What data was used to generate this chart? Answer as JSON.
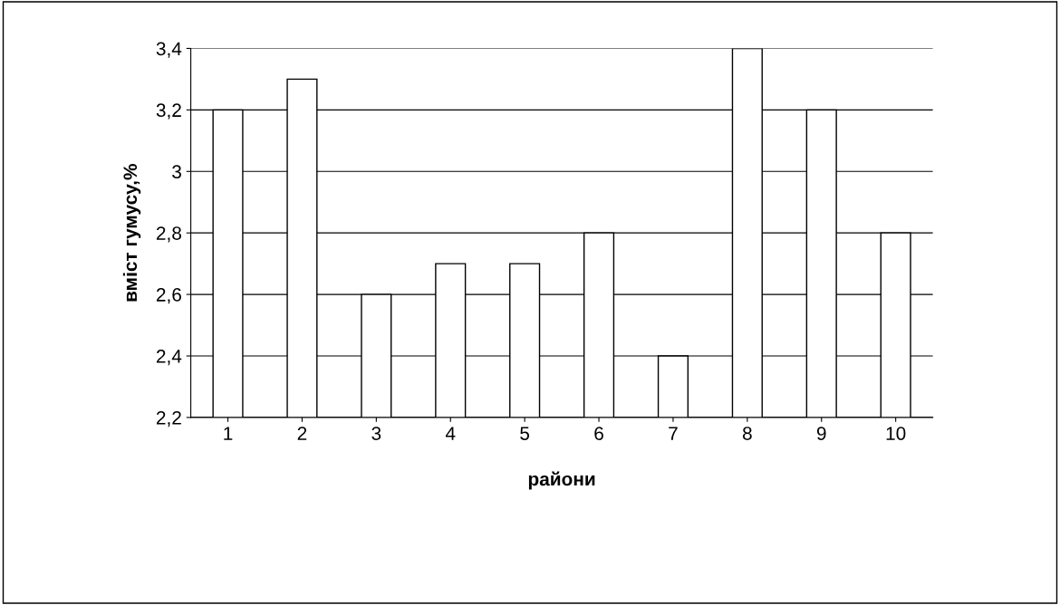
{
  "chart_data": {
    "type": "bar",
    "xlabel": "райони",
    "ylabel": "вміст гумусу,%",
    "categories": [
      "1",
      "2",
      "3",
      "4",
      "5",
      "6",
      "7",
      "8",
      "9",
      "10"
    ],
    "values": [
      3.2,
      3.3,
      2.6,
      2.7,
      2.7,
      2.8,
      2.4,
      3.4,
      3.2,
      2.8
    ],
    "color": "#ffffff",
    "ylim": [
      2.2,
      3.4
    ],
    "yticks": [
      {
        "value": 2.2,
        "label": "2,2"
      },
      {
        "value": 2.4,
        "label": "2,4"
      },
      {
        "value": 2.6,
        "label": "2,6"
      },
      {
        "value": 2.8,
        "label": "2,8"
      },
      3,
      {
        "value": 3.2,
        "label": "3,2"
      },
      {
        "value": 3.4,
        "label": "3,4"
      }
    ],
    "grid": "y"
  }
}
